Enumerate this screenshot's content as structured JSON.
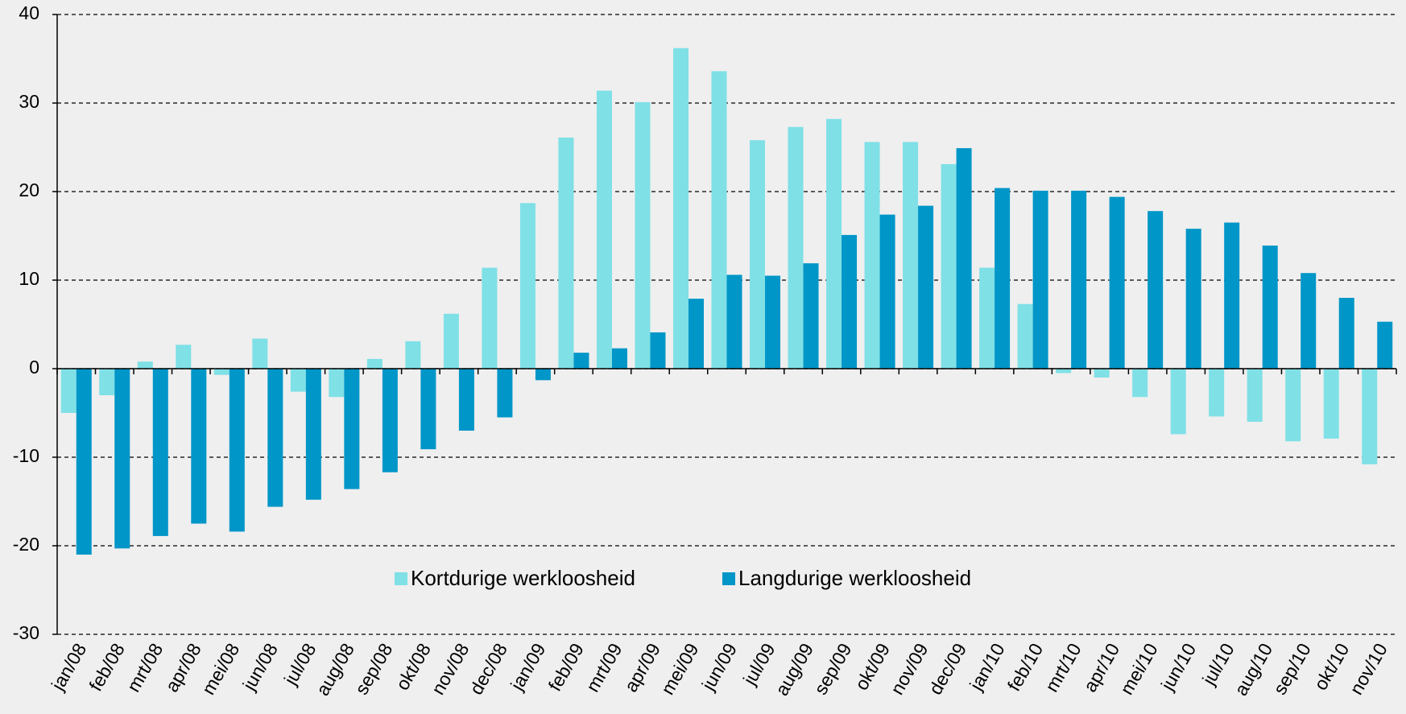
{
  "chart_data": {
    "type": "bar",
    "categories": [
      "jan/08",
      "feb/08",
      "mrt/08",
      "apr/08",
      "mei/08",
      "jun/08",
      "jul/08",
      "aug/08",
      "sep/08",
      "okt/08",
      "nov/08",
      "dec/08",
      "jan/09",
      "feb/09",
      "mrt/09",
      "apr/09",
      "mei/09",
      "jun/09",
      "jul/09",
      "aug/09",
      "sep/09",
      "okt/09",
      "nov/09",
      "dec/09",
      "jan/10",
      "feb/10",
      "mrt/10",
      "apr/10",
      "mei/10",
      "jun/10",
      "jul/10",
      "aug/10",
      "sep/10",
      "okt/10",
      "nov/10"
    ],
    "series": [
      {
        "name": "Kortdurige werkloosheid",
        "color": "#7fe0e6",
        "values": [
          -5.0,
          -3.0,
          0.8,
          2.7,
          -0.7,
          3.4,
          -2.6,
          -3.2,
          1.1,
          3.1,
          6.2,
          11.4,
          18.7,
          26.1,
          31.4,
          30.1,
          36.2,
          33.6,
          25.8,
          27.3,
          28.2,
          25.6,
          25.6,
          23.1,
          11.4,
          7.3,
          -0.5,
          -1.0,
          -3.2,
          -7.4,
          -5.4,
          -6.0,
          -8.2,
          -7.9,
          -10.8
        ]
      },
      {
        "name": "Langdurige werkloosheid",
        "color": "#0096c8",
        "values": [
          -21.0,
          -20.3,
          -18.9,
          -17.5,
          -18.4,
          -15.6,
          -14.8,
          -13.6,
          -11.7,
          -9.1,
          -7.0,
          -5.5,
          -1.3,
          1.8,
          2.3,
          4.1,
          7.9,
          10.6,
          10.5,
          11.9,
          15.1,
          17.4,
          18.4,
          24.9,
          20.4,
          20.1,
          20.1,
          19.4,
          17.8,
          15.8,
          16.5,
          13.9,
          10.8,
          8.0,
          5.3
        ]
      }
    ],
    "ylim": [
      -30,
      40
    ],
    "yticks": [
      -30,
      -20,
      -10,
      0,
      10,
      20,
      30,
      40
    ],
    "grid": true
  }
}
